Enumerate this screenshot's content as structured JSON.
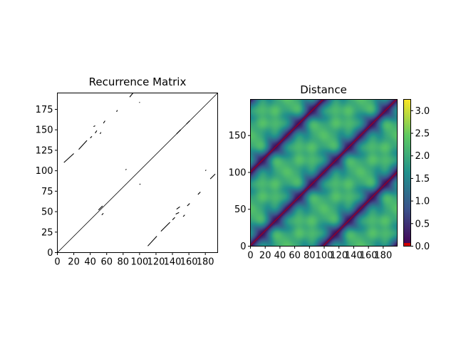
{
  "chart_data": [
    {
      "type": "scatter",
      "title": "Recurrence Matrix",
      "xlim": [
        0,
        195
      ],
      "ylim": [
        0,
        195
      ],
      "xticks": [
        "0",
        "20",
        "40",
        "60",
        "80",
        "100",
        "120",
        "140",
        "160",
        "180"
      ],
      "yticks": [
        "0",
        "25",
        "50",
        "75",
        "100",
        "125",
        "150",
        "175"
      ],
      "grid": false,
      "segments": [
        {
          "from": [
            0,
            0
          ],
          "to": [
            195,
            195
          ]
        },
        {
          "from": [
            8,
            110
          ],
          "to": [
            20,
            121
          ]
        },
        {
          "from": [
            26,
            126
          ],
          "to": [
            36,
            137
          ]
        },
        {
          "from": [
            40,
            140
          ],
          "to": [
            42,
            142
          ]
        },
        {
          "from": [
            44,
            154
          ],
          "to": [
            46,
            155
          ]
        },
        {
          "from": [
            46,
            146
          ],
          "to": [
            48,
            149
          ]
        },
        {
          "from": [
            52,
            145
          ],
          "to": [
            53,
            147
          ]
        },
        {
          "from": [
            56,
            158
          ],
          "to": [
            58,
            161
          ]
        },
        {
          "from": [
            72,
            172
          ],
          "to": [
            73,
            174
          ]
        },
        {
          "from": [
            88,
            190
          ],
          "to": [
            92,
            195
          ]
        },
        {
          "from": [
            100,
            183
          ],
          "to": [
            100,
            184
          ]
        },
        {
          "from": [
            83,
            101
          ],
          "to": [
            84,
            102
          ]
        },
        {
          "from": [
            100,
            83
          ],
          "to": [
            101,
            84
          ]
        },
        {
          "from": [
            180,
            100
          ],
          "to": [
            181,
            101
          ]
        },
        {
          "from": [
            186,
            90
          ],
          "to": [
            192,
            96
          ]
        },
        {
          "from": [
            110,
            8
          ],
          "to": [
            121,
            20
          ]
        },
        {
          "from": [
            126,
            26
          ],
          "to": [
            137,
            37
          ]
        },
        {
          "from": [
            140,
            40
          ],
          "to": [
            143,
            43
          ]
        },
        {
          "from": [
            144,
            47
          ],
          "to": [
            148,
            49
          ]
        },
        {
          "from": [
            145,
            53
          ],
          "to": [
            149,
            56
          ]
        },
        {
          "from": [
            153,
            44
          ],
          "to": [
            155,
            46
          ]
        },
        {
          "from": [
            158,
            57
          ],
          "to": [
            161,
            60
          ]
        },
        {
          "from": [
            171,
            71
          ],
          "to": [
            174,
            74
          ]
        },
        {
          "from": [
            50,
            52
          ],
          "to": [
            55,
            57
          ]
        },
        {
          "from": [
            54,
            46
          ],
          "to": [
            56,
            48
          ]
        },
        {
          "from": [
            145,
            145
          ],
          "to": [
            150,
            150
          ]
        },
        {
          "from": [
            157,
            157
          ],
          "to": [
            161,
            161
          ]
        }
      ]
    },
    {
      "type": "heatmap",
      "title": "Distance",
      "xlim": [
        0,
        199
      ],
      "ylim": [
        0,
        199
      ],
      "xticks": [
        "0",
        "20",
        "40",
        "60",
        "80",
        "100",
        "120",
        "140",
        "160",
        "180"
      ],
      "yticks": [
        "0",
        "50",
        "100",
        "150"
      ],
      "colorbar": {
        "ticks": [
          "0.0",
          "0.5",
          "1.0",
          "1.5",
          "2.0",
          "2.5",
          "3.0"
        ],
        "range": [
          0,
          3.25
        ],
        "colors": [
          "#440154",
          "#3b528b",
          "#21918c",
          "#5ec962",
          "#fde725"
        ],
        "threshold_color": "#d00000"
      },
      "period": 100,
      "grid": false
    }
  ]
}
